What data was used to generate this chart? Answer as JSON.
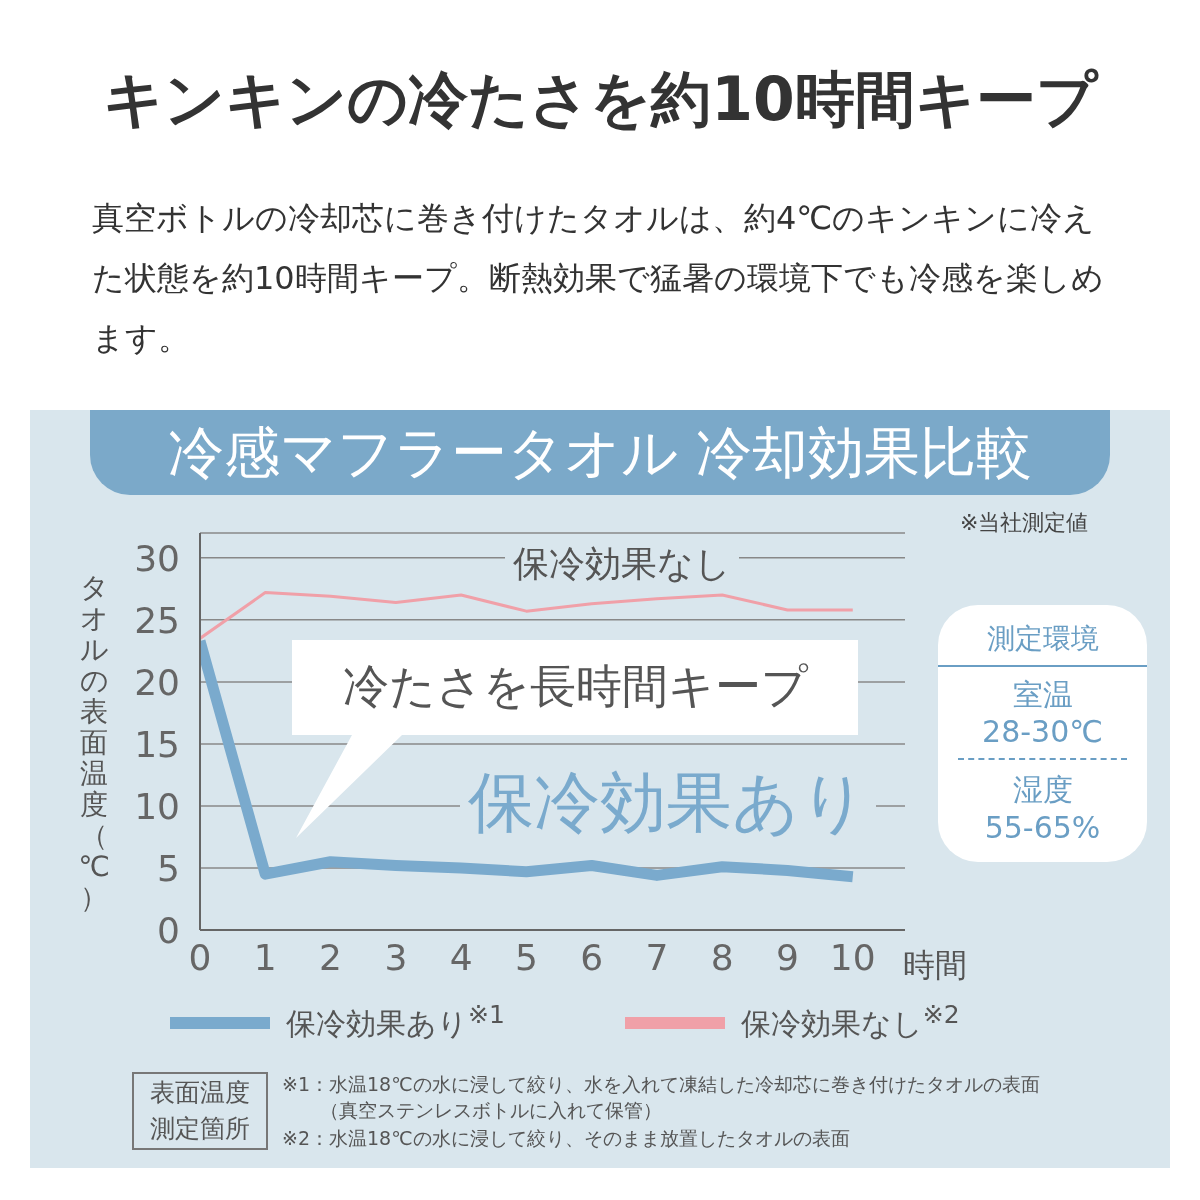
{
  "chart_data": {
    "type": "line",
    "title": "キンキンの冷たさを約10時間キープ",
    "subtitle": "真空ボトルの冷却芯に巻き付けたタオルは、約4℃のキンキンに冷えた状態を約10時間キープ。断熱効果で猛暑の環境下でも冷感を楽しめます。",
    "xlabel": "時間",
    "ylabel": "タオルの表面温度（℃）",
    "x": [
      0,
      1,
      2,
      3,
      4,
      5,
      6,
      7,
      8,
      9,
      10
    ],
    "series": [
      {
        "name": "保冷効果あり$^{※1}$",
        "color": "#7aaacd",
        "values": [
          23.3,
          4.5,
          5.5,
          5.2,
          5.0,
          4.7,
          5.2,
          4.4,
          5.1,
          4.8,
          4.3
        ]
      },
      {
        "name": "保冷効果なし$^{※2}$",
        "color": "#f0a0a8",
        "values": [
          23.5,
          27.2,
          26.9,
          26.4,
          27.0,
          25.7,
          26.3,
          26.7,
          27.0,
          25.8,
          25.8
        ]
      }
    ],
    "xlim": [
      0,
      10.8
    ],
    "xticks": [
      0,
      1,
      2,
      3,
      4,
      5,
      6,
      7,
      8,
      9,
      10
    ],
    "ylim": [
      0,
      32
    ],
    "yticks": [
      0,
      5,
      10,
      15,
      20,
      25,
      30
    ],
    "grid": "y",
    "legend": "bottom",
    "marker": "none",
    "line_style": "solid",
    "annotations": [
      "冷感マフラータオル 冷却効果比較",
      "※当社測定値",
      "冷たさを長時間キープ",
      "保冷効果なし",
      "保冷効果あり",
      "測定環境",
      "室温",
      "28-30℃",
      "湿度",
      "55-65%",
      "表面温度測定箇所",
      "※1：水温18℃の水に浸して絞り、水を入れて凍結した冷却芯に巻き付けたタオルの表面",
      "（真空ステンレスボトルに入れて保管）",
      "※2：水温18℃の水に浸して絞り、そのまま放置したタオルの表面"
    ]
  }
}
